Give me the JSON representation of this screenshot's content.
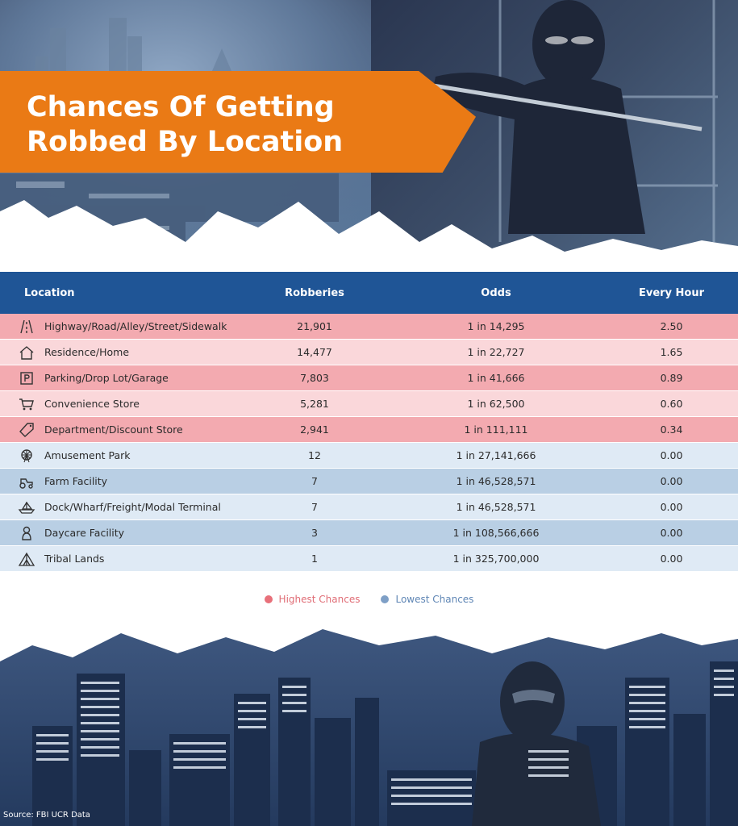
{
  "header": {
    "title_line1": "Chances Of Getting",
    "title_line2": "Robbed By Location"
  },
  "colors": {
    "header_bar": "#1f5596",
    "banner": "#ea7a15",
    "high_dark": "#f3aab0",
    "high_light": "#fad7da",
    "low_dark": "#b9cfe4",
    "low_light": "#dfeaf5",
    "high_dot": "#e8707a",
    "low_dot": "#7e9fc6"
  },
  "chart_data": {
    "type": "table",
    "columns": [
      "Location",
      "Robberies",
      "Odds",
      "Every Hour"
    ],
    "rows": [
      {
        "location": "Highway/Road/Alley/Street/Sidewalk",
        "robberies": "21,901",
        "odds": "1 in 14,295",
        "every_hour": "2.50",
        "group": "high",
        "icon": "road-icon"
      },
      {
        "location": "Residence/Home",
        "robberies": "14,477",
        "odds": "1 in 22,727",
        "every_hour": "1.65",
        "group": "high",
        "icon": "house-icon"
      },
      {
        "location": "Parking/Drop Lot/Garage",
        "robberies": "7,803",
        "odds": "1 in 41,666",
        "every_hour": "0.89",
        "group": "high",
        "icon": "parking-icon"
      },
      {
        "location": "Convenience Store",
        "robberies": "5,281",
        "odds": "1 in 62,500",
        "every_hour": "0.60",
        "group": "high",
        "icon": "cart-icon"
      },
      {
        "location": "Department/Discount Store",
        "robberies": "2,941",
        "odds": "1 in 111,111",
        "every_hour": "0.34",
        "group": "high",
        "icon": "price-tag-icon"
      },
      {
        "location": "Amusement Park",
        "robberies": "12",
        "odds": "1 in 27,141,666",
        "every_hour": "0.00",
        "group": "low",
        "icon": "ferris-wheel-icon"
      },
      {
        "location": "Farm Facility",
        "robberies": "7",
        "odds": "1 in 46,528,571",
        "every_hour": "0.00",
        "group": "low",
        "icon": "tractor-icon"
      },
      {
        "location": "Dock/Wharf/Freight/Modal Terminal",
        "robberies": "7",
        "odds": "1 in 46,528,571",
        "every_hour": "0.00",
        "group": "low",
        "icon": "ship-icon"
      },
      {
        "location": "Daycare Facility",
        "robberies": "3",
        "odds": "1 in 108,566,666",
        "every_hour": "0.00",
        "group": "low",
        "icon": "baby-icon"
      },
      {
        "location": "Tribal Lands",
        "robberies": "1",
        "odds": "1 in 325,700,000",
        "every_hour": "0.00",
        "group": "low",
        "icon": "tent-icon"
      }
    ]
  },
  "legend": {
    "high_label": "Highest Chances",
    "low_label": "Lowest Chances"
  },
  "footer": {
    "source": "Source: FBI UCR Data"
  }
}
